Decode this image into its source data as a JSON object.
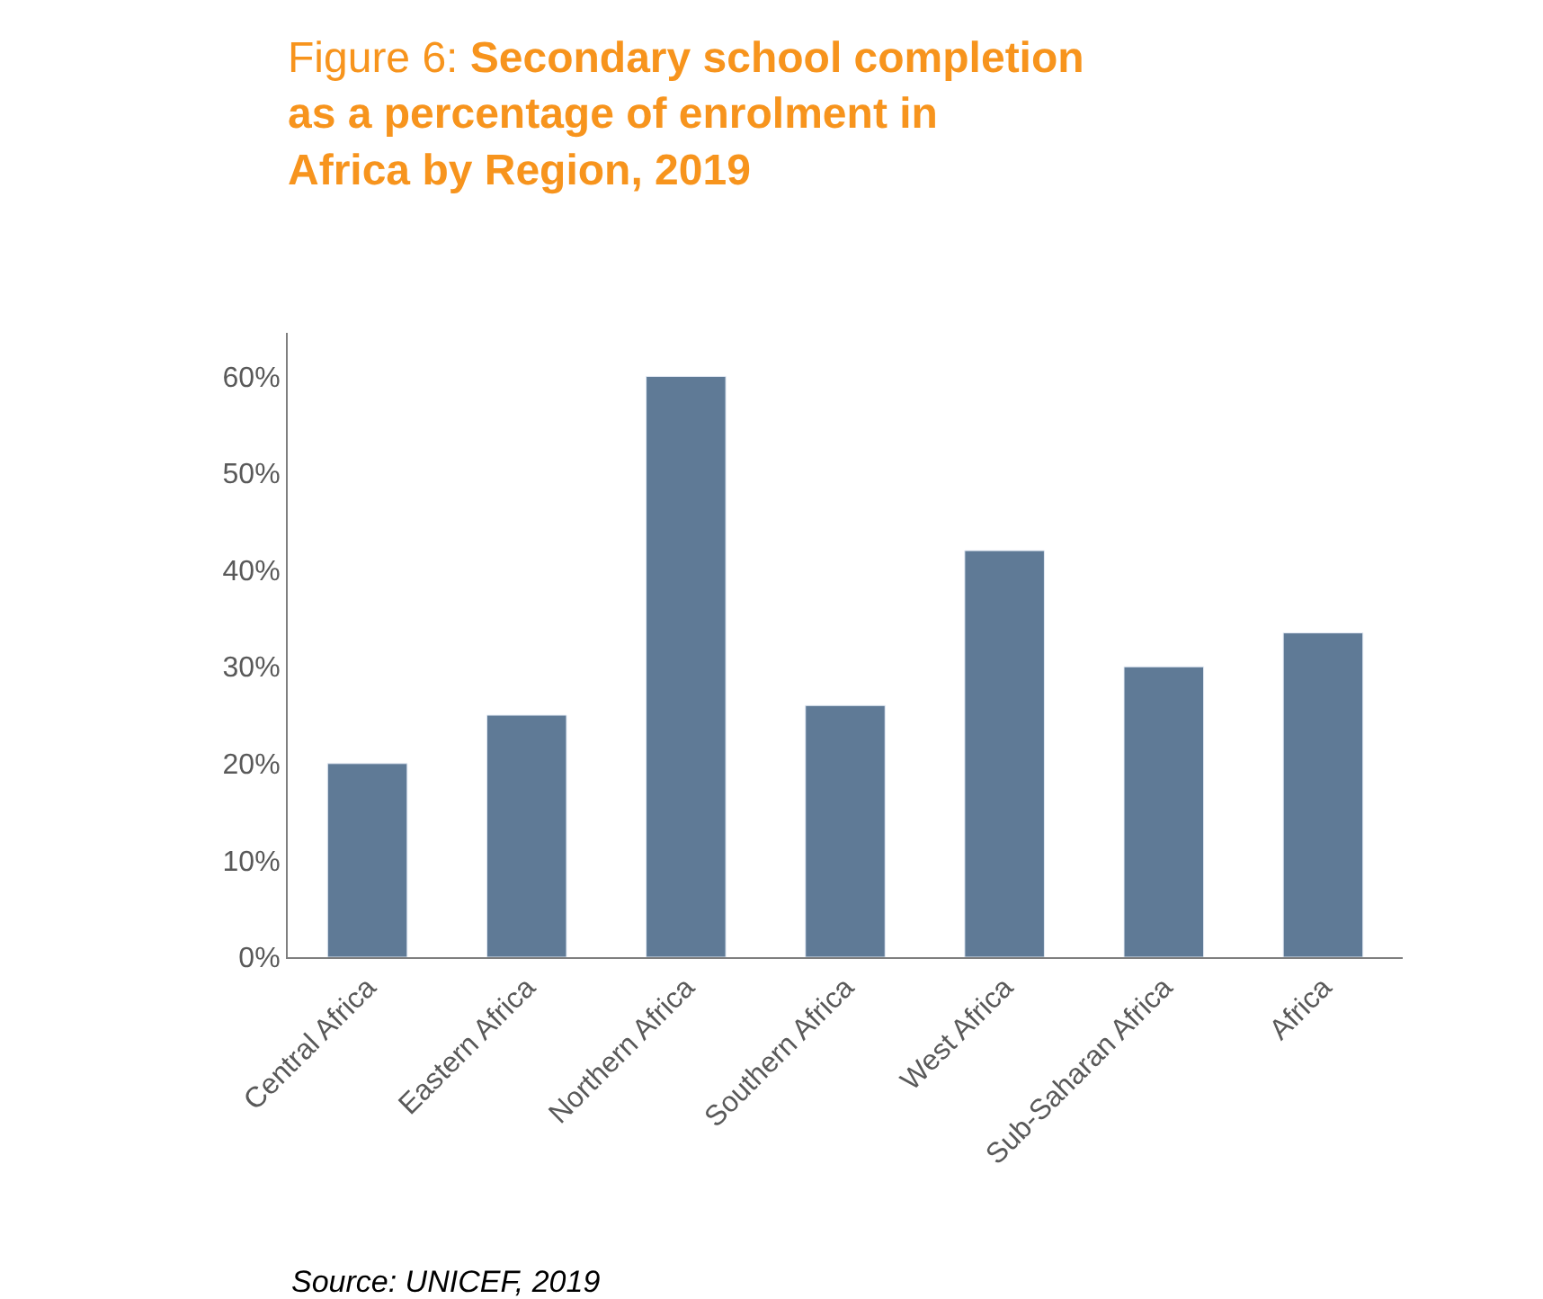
{
  "chart_data": {
    "type": "bar",
    "title": "Figure 6: Secondary school completion as a percentage of enrolment in Africa by Region, 2019",
    "categories": [
      "Central Africa",
      "Eastern Africa",
      "Northern Africa",
      "Southern Africa",
      "West Africa",
      "Sub-Saharan Africa",
      "Africa"
    ],
    "values": [
      20,
      25,
      60,
      26,
      42,
      30,
      33.5
    ],
    "color": "#5f7a96",
    "ylim": [
      0,
      64.5
    ],
    "yticks": [
      {
        "value": 0,
        "label": "0%"
      },
      {
        "value": 10,
        "label": "10%"
      },
      {
        "value": 20,
        "label": "20%"
      },
      {
        "value": 30,
        "label": "30%"
      },
      {
        "value": 40,
        "label": "40%"
      },
      {
        "value": 50,
        "label": "50%"
      },
      {
        "value": 60,
        "label": "60%"
      }
    ],
    "legend": false,
    "annotations": [
      "Source: UNICEF, 2019"
    ]
  }
}
